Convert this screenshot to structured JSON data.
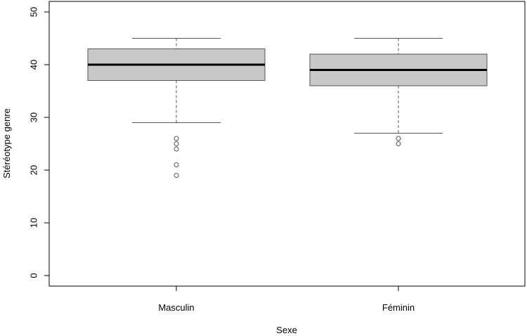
{
  "chart_data": {
    "type": "boxplot",
    "xlabel": "Sexe",
    "ylabel": "Stéréotype genre",
    "ylim": [
      0,
      50
    ],
    "yticks": [
      0,
      10,
      20,
      30,
      40,
      50
    ],
    "categories": [
      "Masculin",
      "Féminin"
    ],
    "boxes": [
      {
        "category": "Masculin",
        "whisker_low": 29,
        "q1": 37,
        "median": 40,
        "q3": 43,
        "whisker_high": 45,
        "outliers": [
          26,
          25,
          24,
          21,
          19
        ]
      },
      {
        "category": "Féminin",
        "whisker_low": 27,
        "q1": 36,
        "median": 39,
        "q3": 42,
        "whisker_high": 45,
        "outliers": [
          26,
          25
        ]
      }
    ],
    "grid": false,
    "colors": {
      "box_fill": "#c8c8c8",
      "stroke": "#000000",
      "whisker": "#555555"
    }
  }
}
